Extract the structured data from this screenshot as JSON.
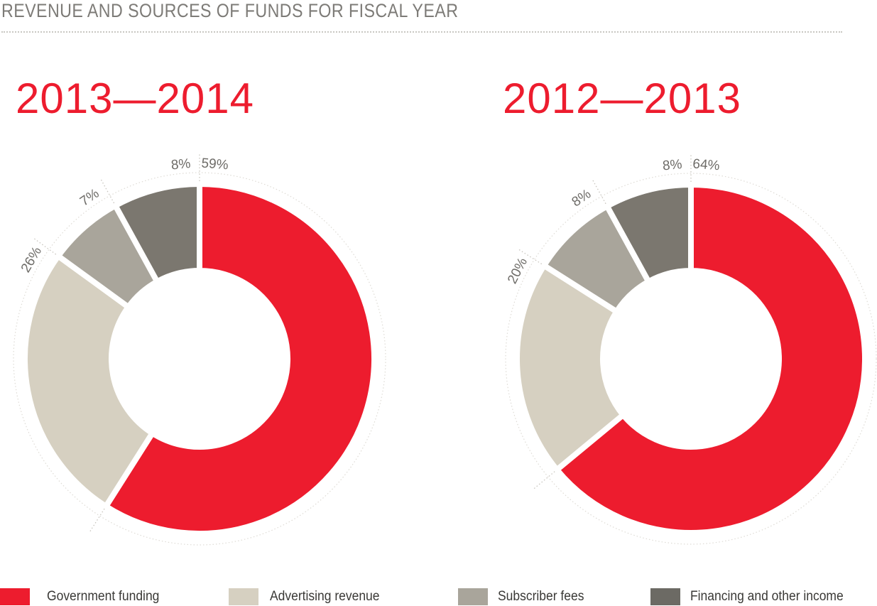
{
  "page_title": "REVENUE AND SOURCES OF FUNDS FOR FISCAL YEAR",
  "colors": {
    "government": "#ed1c2e",
    "advertising": "#d6d0c1",
    "subscriber": "#a9a59b",
    "financing": "#7b776f"
  },
  "legend": [
    {
      "label": "Government funding",
      "color": "#ed1c2e"
    },
    {
      "label": "Advertising revenue",
      "color": "#d6d0c1"
    },
    {
      "label": "Subscriber fees",
      "color": "#a9a59b"
    },
    {
      "label": "Financing and other income",
      "color": "#6c6a64"
    }
  ],
  "chart_data": [
    {
      "type": "pie",
      "title": "2013—2014",
      "categories": [
        "Government funding",
        "Advertising revenue",
        "Subscriber fees",
        "Financing and other income"
      ],
      "values": [
        59,
        26,
        7,
        8
      ],
      "labels": [
        "59%",
        "26%",
        "7%",
        "8%"
      ]
    },
    {
      "type": "pie",
      "title": "2012—2013",
      "categories": [
        "Government funding",
        "Advertising revenue",
        "Subscriber fees",
        "Financing and other income"
      ],
      "values": [
        64,
        20,
        8,
        8
      ],
      "labels": [
        "64%",
        "20%",
        "8%",
        "8%"
      ]
    }
  ]
}
